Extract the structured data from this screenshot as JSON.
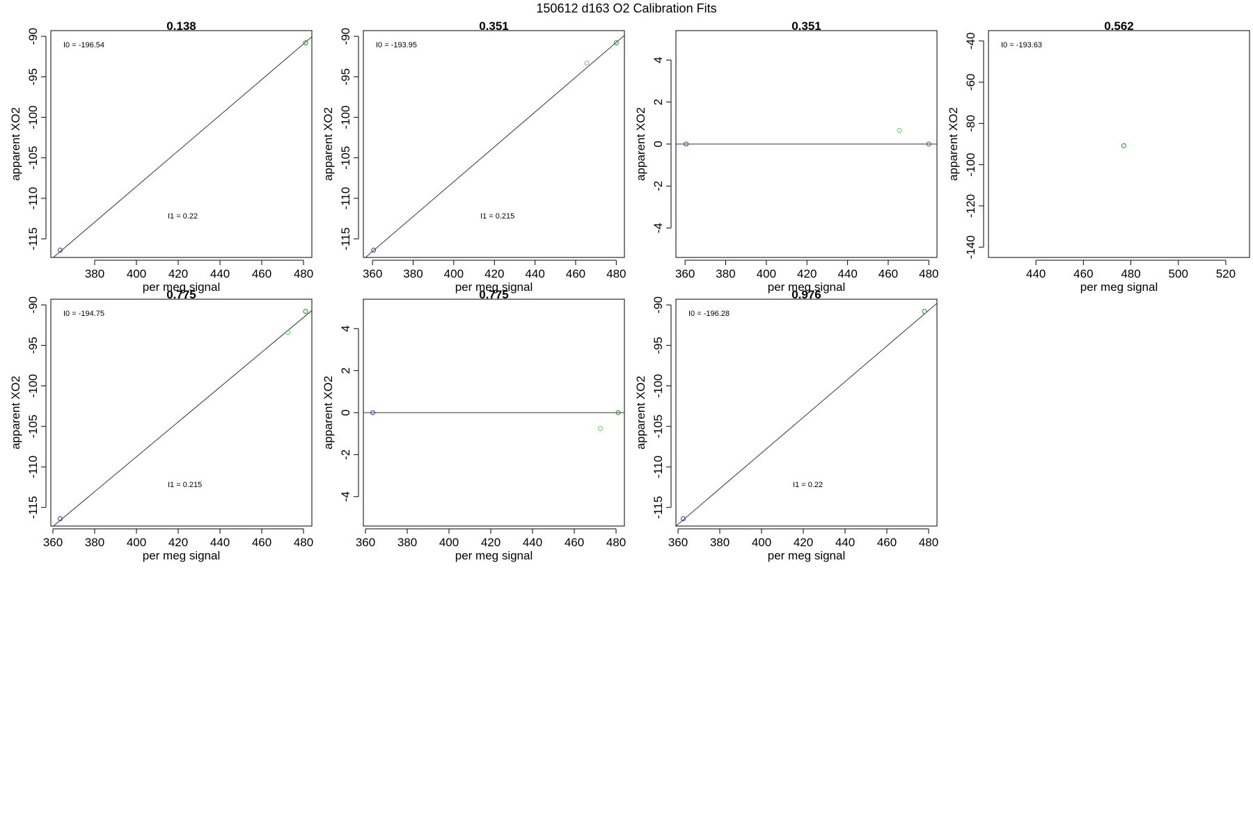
{
  "page": {
    "title": "150612   d163   O2 Calibration Fits"
  },
  "colors": {
    "axis": "#000000",
    "fit_line": "#333333",
    "blue_point": "#3333cc",
    "dark_green_point": "#228b22",
    "light_green_point": "#55dd55"
  },
  "chart_data": [
    {
      "type": "scatter",
      "title": "0.138",
      "xlabel": "per meg signal",
      "ylabel": "apparent XO2",
      "xlim": [
        359,
        484
      ],
      "ylim": [
        -117.3,
        -89.3
      ],
      "xticks": [
        380,
        400,
        420,
        440,
        460,
        480
      ],
      "yticks": [
        -90,
        -95,
        -100,
        -105,
        -110,
        -115
      ],
      "annotations": [
        {
          "text": "I0 =  -196.54"
        },
        {
          "text": "I1 =  0.22"
        }
      ],
      "fit_line": {
        "slope": 0.22,
        "intercept": -196.54
      },
      "points": [
        {
          "x": 363.5,
          "y": -116.4,
          "color": "blue"
        },
        {
          "x": 481,
          "y": -90.8,
          "color": "darkgreen"
        }
      ]
    },
    {
      "type": "scatter",
      "title": "0.351",
      "xlabel": "per meg signal",
      "ylabel": "apparent XO2",
      "xlim": [
        355.5,
        484
      ],
      "ylim": [
        -117.3,
        -89.3
      ],
      "xticks": [
        360,
        380,
        400,
        420,
        440,
        460,
        480
      ],
      "yticks": [
        -90,
        -95,
        -100,
        -105,
        -110,
        -115
      ],
      "annotations": [
        {
          "text": "I0 =  -193.95"
        },
        {
          "text": "I1 =  0.215"
        }
      ],
      "fit_line": {
        "slope": 0.215,
        "intercept": -193.95
      },
      "points": [
        {
          "x": 360.5,
          "y": -116.4,
          "color": "blue"
        },
        {
          "x": 465.5,
          "y": -93.3,
          "color": "lightgreen"
        },
        {
          "x": 480,
          "y": -90.8,
          "color": "darkgreen"
        }
      ]
    },
    {
      "type": "scatter",
      "title": "0.351",
      "xlabel": "per meg signal",
      "ylabel": "apparent XO2",
      "xlim": [
        355.5,
        484
      ],
      "ylim": [
        -5.4,
        5.4
      ],
      "xticks": [
        360,
        380,
        400,
        420,
        440,
        460,
        480
      ],
      "yticks": [
        4,
        2,
        0,
        -2,
        -4
      ],
      "annotations": [],
      "hline": 0,
      "points": [
        {
          "x": 360.5,
          "y": 0,
          "color": "blue"
        },
        {
          "x": 465.5,
          "y": 0.65,
          "color": "lightgreen"
        },
        {
          "x": 480,
          "y": 0,
          "color": "darkgreen"
        }
      ]
    },
    {
      "type": "scatter",
      "title": "0.562",
      "xlabel": "per meg signal",
      "ylabel": "apparent XO2",
      "xlim": [
        420,
        530
      ],
      "ylim": [
        -145,
        -35
      ],
      "xticks": [
        440,
        460,
        480,
        500,
        520
      ],
      "yticks": [
        -40,
        -60,
        -80,
        -100,
        -120,
        -140
      ],
      "annotations": [
        {
          "text": "I0 =  -193.63"
        }
      ],
      "points": [
        {
          "x": 477,
          "y": -90.8,
          "color": "darkgreen"
        }
      ]
    },
    {
      "type": "scatter",
      "title": "0.775",
      "xlabel": "per meg signal",
      "ylabel": "apparent XO2",
      "xlim": [
        359,
        484
      ],
      "ylim": [
        -117.3,
        -89.3
      ],
      "xticks": [
        360,
        380,
        400,
        420,
        440,
        460,
        480
      ],
      "yticks": [
        -90,
        -95,
        -100,
        -105,
        -110,
        -115
      ],
      "annotations": [
        {
          "text": "I0 =  -194.75"
        },
        {
          "text": "I1 =  0.215"
        }
      ],
      "fit_line": {
        "slope": 0.215,
        "intercept": -194.75
      },
      "points": [
        {
          "x": 363.5,
          "y": -116.4,
          "color": "blue"
        },
        {
          "x": 472.5,
          "y": -93.4,
          "color": "lightgreen"
        },
        {
          "x": 481,
          "y": -90.8,
          "color": "darkgreen"
        }
      ]
    },
    {
      "type": "scatter",
      "title": "0.775",
      "xlabel": "per meg signal",
      "ylabel": "apparent XO2",
      "xlim": [
        359,
        484
      ],
      "ylim": [
        -5.4,
        5.4
      ],
      "xticks": [
        360,
        380,
        400,
        420,
        440,
        460,
        480
      ],
      "yticks": [
        4,
        2,
        0,
        -2,
        -4
      ],
      "annotations": [],
      "hline": 0,
      "points": [
        {
          "x": 363.5,
          "y": 0,
          "color": "blue"
        },
        {
          "x": 472.5,
          "y": -0.75,
          "color": "lightgreen"
        },
        {
          "x": 481,
          "y": 0,
          "color": "darkgreen"
        }
      ]
    },
    {
      "type": "scatter",
      "title": "0.976",
      "xlabel": "per meg signal",
      "ylabel": "apparent XO2",
      "xlim": [
        359,
        484
      ],
      "ylim": [
        -117.3,
        -89.3
      ],
      "xticks": [
        360,
        380,
        400,
        420,
        440,
        460,
        480
      ],
      "yticks": [
        -90,
        -95,
        -100,
        -105,
        -110,
        -115
      ],
      "annotations": [
        {
          "text": "I0 =  -196.28"
        },
        {
          "text": "I1 =  0.22"
        }
      ],
      "fit_line": {
        "slope": 0.22,
        "intercept": -196.28
      },
      "points": [
        {
          "x": 362.5,
          "y": -116.4,
          "color": "blue"
        },
        {
          "x": 478,
          "y": -90.8,
          "color": "darkgreen"
        }
      ]
    }
  ]
}
